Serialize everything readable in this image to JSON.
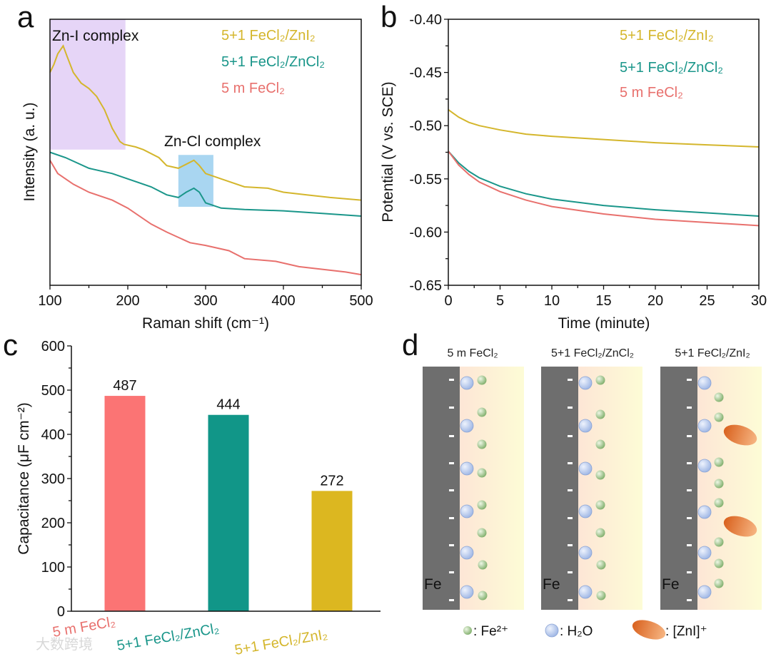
{
  "colors": {
    "yellow": "#d4b62c",
    "teal": "#1a968a",
    "red": "#e8706d",
    "bar_red": "#fb7474",
    "bar_teal": "#119688",
    "bar_yellow": "#dcb720",
    "purple_box": "#e6d5f7",
    "blue_box": "#a9d6f1",
    "electrode": "#6e6e6e",
    "fe2_ion": "#8db878",
    "water": "#b9cdf0",
    "zni": "#e8793a"
  },
  "panels": {
    "a": "a",
    "b": "b",
    "c": "c",
    "d": "d"
  },
  "watermark": "大数跨境",
  "chart_data": [
    {
      "id": "a",
      "type": "line",
      "xlabel": "Raman shift (cm⁻¹)",
      "ylabel": "Intensity (a. u.)",
      "xlim": [
        100,
        500
      ],
      "ylim": [
        0,
        1
      ],
      "xticks": [
        100,
        200,
        300,
        400,
        500
      ],
      "legend_position": "top-right",
      "annotations": [
        {
          "text": "Zn-I complex",
          "region_x": [
            100,
            197
          ],
          "region_y": [
            0.51,
            1
          ],
          "color": "purple_box"
        },
        {
          "text": "Zn-Cl complex",
          "region_x": [
            265,
            310
          ],
          "region_y": [
            0.295,
            0.49
          ],
          "color": "blue_box"
        }
      ],
      "series": [
        {
          "name": "5+1 FeCl₂/ZnI₂",
          "color": "yellow",
          "x": [
            100,
            105,
            110,
            117,
            122,
            130,
            140,
            150,
            160,
            170,
            180,
            190,
            195,
            210,
            220,
            240,
            250,
            265,
            275,
            285,
            292,
            300,
            320,
            350,
            380,
            400,
            430,
            460,
            500
          ],
          "y": [
            0.8,
            0.83,
            0.87,
            0.9,
            0.86,
            0.8,
            0.76,
            0.74,
            0.71,
            0.66,
            0.59,
            0.54,
            0.53,
            0.52,
            0.51,
            0.48,
            0.45,
            0.44,
            0.455,
            0.47,
            0.45,
            0.42,
            0.4,
            0.37,
            0.365,
            0.35,
            0.34,
            0.33,
            0.32
          ]
        },
        {
          "name": "5+1 FeCl₂/ZnCl₂",
          "color": "teal",
          "x": [
            100,
            120,
            150,
            180,
            200,
            230,
            250,
            265,
            275,
            285,
            292,
            300,
            320,
            350,
            400,
            450,
            500
          ],
          "y": [
            0.5,
            0.48,
            0.44,
            0.42,
            0.4,
            0.37,
            0.34,
            0.33,
            0.35,
            0.365,
            0.35,
            0.31,
            0.29,
            0.285,
            0.28,
            0.27,
            0.26
          ]
        },
        {
          "name": "5 m FeCl₂",
          "color": "red",
          "x": [
            100,
            110,
            130,
            150,
            180,
            200,
            230,
            250,
            280,
            300,
            330,
            350,
            390,
            420,
            450,
            480,
            500
          ],
          "y": [
            0.47,
            0.42,
            0.38,
            0.35,
            0.32,
            0.29,
            0.23,
            0.2,
            0.16,
            0.15,
            0.13,
            0.1,
            0.09,
            0.07,
            0.06,
            0.05,
            0.04
          ]
        }
      ]
    },
    {
      "id": "b",
      "type": "line",
      "xlabel": "Time (minute)",
      "ylabel": "Potential (V vs. SCE)",
      "xlim": [
        0,
        30
      ],
      "ylim": [
        -0.65,
        -0.4
      ],
      "xticks": [
        0,
        5,
        10,
        15,
        20,
        25,
        30
      ],
      "yticks": [
        -0.4,
        -0.45,
        -0.5,
        -0.55,
        -0.6,
        -0.65
      ],
      "ytick_labels": [
        "-0.40",
        "-0.45",
        "-0.50",
        "-0.55",
        "-0.60",
        "-0.65"
      ],
      "legend_position": "top-right",
      "series": [
        {
          "name": "5+1 FeCl₂/ZnI₂",
          "color": "yellow",
          "x": [
            0,
            1,
            2,
            3,
            5,
            7.5,
            10,
            15,
            20,
            25,
            30
          ],
          "y": [
            -0.485,
            -0.492,
            -0.497,
            -0.5,
            -0.504,
            -0.508,
            -0.51,
            -0.513,
            -0.516,
            -0.518,
            -0.52
          ]
        },
        {
          "name": "5+1 FeCl₂/ZnCl₂",
          "color": "teal",
          "x": [
            0,
            1,
            2,
            3,
            5,
            7.5,
            10,
            15,
            20,
            25,
            30
          ],
          "y": [
            -0.524,
            -0.535,
            -0.543,
            -0.549,
            -0.557,
            -0.564,
            -0.569,
            -0.575,
            -0.579,
            -0.582,
            -0.585
          ]
        },
        {
          "name": "5 m FeCl₂",
          "color": "red",
          "x": [
            0,
            1,
            2,
            3,
            5,
            7.5,
            10,
            15,
            20,
            25,
            30
          ],
          "y": [
            -0.524,
            -0.537,
            -0.546,
            -0.553,
            -0.562,
            -0.57,
            -0.576,
            -0.583,
            -0.588,
            -0.591,
            -0.594
          ]
        }
      ]
    },
    {
      "id": "c",
      "type": "bar",
      "ylabel": "Capacitance (μF cm⁻²)",
      "xlabel": "",
      "ylim": [
        0,
        600
      ],
      "yticks": [
        0,
        100,
        200,
        300,
        400,
        500,
        600
      ],
      "categories": [
        "5 m FeCl₂",
        "5+1 FeCl₂/ZnCl₂",
        "5+1 FeCl₂/ZnI₂"
      ],
      "category_colors": [
        "red",
        "teal",
        "yellow"
      ],
      "bar_colors": [
        "bar_red",
        "bar_teal",
        "bar_yellow"
      ],
      "values": [
        487,
        444,
        272
      ],
      "value_labels": [
        "487",
        "444",
        "272"
      ]
    }
  ],
  "diagram": {
    "titles": [
      "5 m FeCl₂",
      "5+1 FeCl₂/ZnCl₂",
      "5+1 FeCl₂/ZnI₂"
    ],
    "electrode_label": "Fe",
    "legend": {
      "fe2": ": Fe²⁺",
      "water": ": H₂O",
      "zni": ": [ZnI]⁺"
    }
  }
}
